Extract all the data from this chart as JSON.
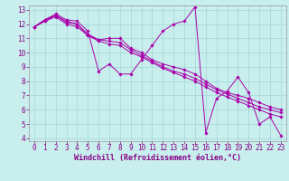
{
  "title": "",
  "xlabel": "Windchill (Refroidissement éolien,°C)",
  "ylabel": "",
  "xlim": [
    -0.5,
    23.5
  ],
  "ylim": [
    3.8,
    13.3
  ],
  "yticks": [
    4,
    5,
    6,
    7,
    8,
    9,
    10,
    11,
    12,
    13
  ],
  "xticks": [
    0,
    1,
    2,
    3,
    4,
    5,
    6,
    7,
    8,
    9,
    10,
    11,
    12,
    13,
    14,
    15,
    16,
    17,
    18,
    19,
    20,
    21,
    22,
    23
  ],
  "bg_color": "#c8eeed",
  "line_color": "#aa00aa",
  "grid_color": "#a0d8d8",
  "lines": [
    {
      "x": [
        0,
        1,
        2,
        3,
        4,
        5,
        6,
        7,
        8,
        9,
        10,
        11,
        12,
        13,
        14,
        15,
        16,
        17,
        18,
        19,
        20,
        21,
        22,
        23
      ],
      "y": [
        11.8,
        12.3,
        12.6,
        12.2,
        12.0,
        11.2,
        10.9,
        11.0,
        11.0,
        10.3,
        10.0,
        9.5,
        9.2,
        9.0,
        8.8,
        8.5,
        8.0,
        7.5,
        7.2,
        7.0,
        6.8,
        6.5,
        6.2,
        6.0
      ]
    },
    {
      "x": [
        0,
        1,
        2,
        3,
        4,
        5,
        6,
        7,
        8,
        9,
        10,
        11,
        12,
        13,
        14,
        15,
        16,
        17,
        18,
        19,
        20,
        21,
        22,
        23
      ],
      "y": [
        11.8,
        12.3,
        12.7,
        12.3,
        12.2,
        11.5,
        8.7,
        9.2,
        8.5,
        8.5,
        9.5,
        10.5,
        11.5,
        12.0,
        12.2,
        13.2,
        4.4,
        6.8,
        7.3,
        8.3,
        7.2,
        5.0,
        5.5,
        4.2
      ]
    },
    {
      "x": [
        0,
        1,
        2,
        3,
        4,
        5,
        6,
        7,
        8,
        9,
        10,
        11,
        12,
        13,
        14,
        15,
        16,
        17,
        18,
        19,
        20,
        21,
        22,
        23
      ],
      "y": [
        11.8,
        12.2,
        12.6,
        12.1,
        12.0,
        11.3,
        10.9,
        10.8,
        10.7,
        10.2,
        9.8,
        9.4,
        9.0,
        8.7,
        8.5,
        8.2,
        7.8,
        7.4,
        7.1,
        6.8,
        6.5,
        6.2,
        6.0,
        5.8
      ]
    },
    {
      "x": [
        0,
        1,
        2,
        3,
        4,
        5,
        6,
        7,
        8,
        9,
        10,
        11,
        12,
        13,
        14,
        15,
        16,
        17,
        18,
        19,
        20,
        21,
        22,
        23
      ],
      "y": [
        11.8,
        12.2,
        12.5,
        12.0,
        11.8,
        11.2,
        10.8,
        10.6,
        10.5,
        10.0,
        9.7,
        9.3,
        8.9,
        8.6,
        8.3,
        8.0,
        7.6,
        7.2,
        6.9,
        6.6,
        6.3,
        6.0,
        5.7,
        5.5
      ]
    }
  ],
  "marker": "D",
  "marker_size": 1.8,
  "linewidth": 0.7,
  "tick_fontsize": 5.5,
  "xlabel_fontsize": 6.0,
  "tick_color": "#880088",
  "label_color": "#880088"
}
